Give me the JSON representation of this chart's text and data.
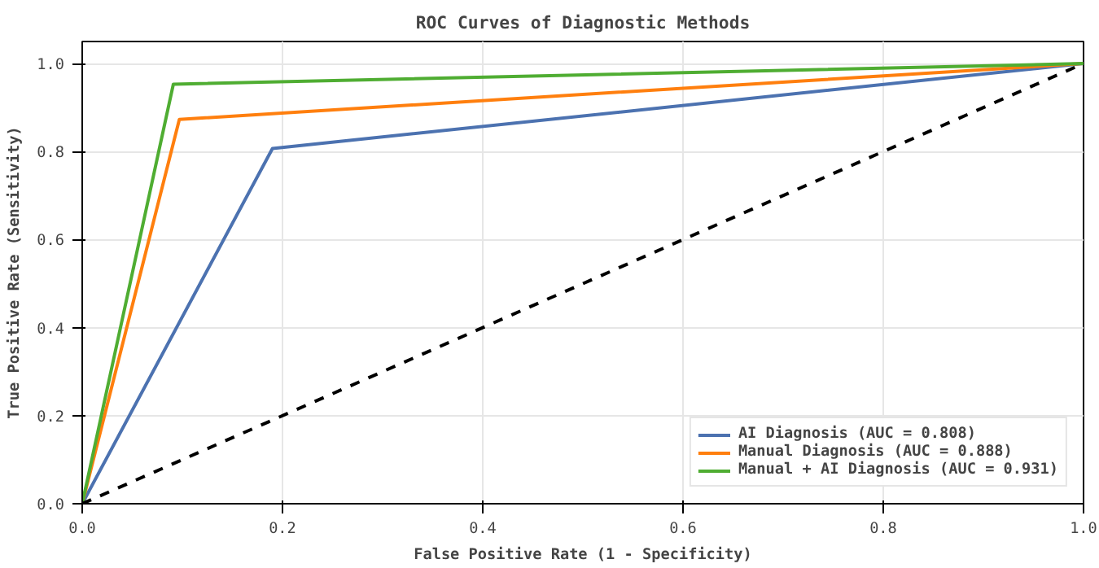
{
  "chart_data": {
    "type": "line",
    "title": "ROC Curves of Diagnostic Methods",
    "xlabel": "False Positive Rate (1 - Specificity)",
    "ylabel": "True Positive Rate (Sensitivity)",
    "xlim": [
      0,
      1
    ],
    "ylim": [
      0,
      1.05
    ],
    "xticks": [
      {
        "value": 0,
        "label": "0.0"
      },
      0.2,
      0.4,
      0.6,
      0.8,
      {
        "value": 1,
        "label": "1.0"
      }
    ],
    "yticks": [
      {
        "value": 0,
        "label": "0.0"
      },
      0.2,
      0.4,
      0.6,
      0.8,
      {
        "value": 1,
        "label": "1.0"
      }
    ],
    "grid": true,
    "legend": "bottom right",
    "line_style": "solid",
    "series": [
      {
        "name": "AI Diagnosis (AUC = 0.808)",
        "color": "#4c72b0",
        "x": [
          0,
          0.19,
          1
        ],
        "values": [
          0,
          0.807,
          1
        ]
      },
      {
        "name": "Manual Diagnosis (AUC = 0.888)",
        "color": "#ff7f0e",
        "x": [
          0,
          0.097,
          1
        ],
        "values": [
          0,
          0.873,
          1
        ]
      },
      {
        "name": "Manual + AI Diagnosis (AUC = 0.931)",
        "color": "#4fad32",
        "x": [
          0,
          0.091,
          1
        ],
        "values": [
          0,
          0.953,
          1
        ]
      },
      {
        "color": "#000000",
        "x": [
          0,
          1
        ],
        "values": [
          0,
          1
        ],
        "line_style": "dashed"
      }
    ]
  }
}
